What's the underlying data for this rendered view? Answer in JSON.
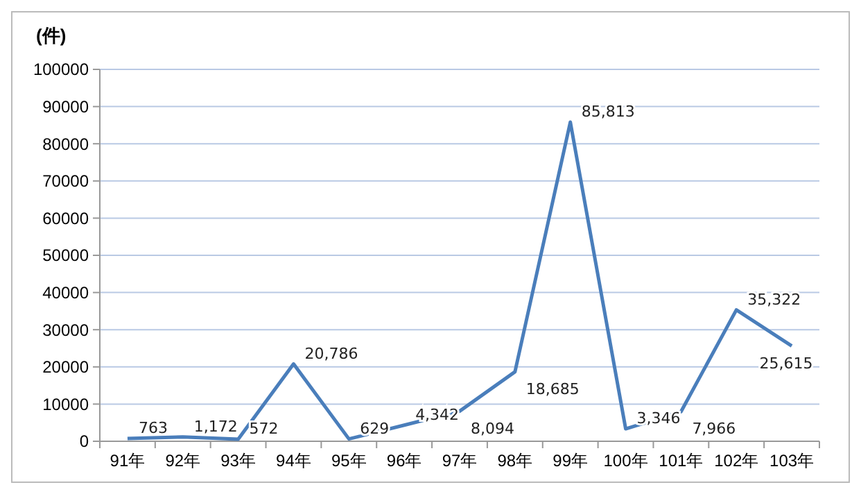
{
  "chart_data": {
    "type": "line",
    "ylabel": "(件)",
    "categories": [
      "91年",
      "92年",
      "93年",
      "94年",
      "95年",
      "96年",
      "97年",
      "98年",
      "99年",
      "100年",
      "101年",
      "102年",
      "103年"
    ],
    "series": [
      {
        "color": "#4a7ebb",
        "values": [
          763,
          1172,
          572,
          20786,
          629,
          4342,
          8094,
          18685,
          85813,
          3346,
          7966,
          35322,
          25615
        ],
        "value_labels": [
          "763",
          "1,172",
          "572",
          "20,786",
          "629",
          "4,342",
          "8,094",
          "18,685",
          "85,813",
          "3,346",
          "7,966",
          "35,322",
          "25,615"
        ]
      }
    ],
    "ylim": [
      0,
      100000
    ],
    "yticks": [
      0,
      10000,
      20000,
      30000,
      40000,
      50000,
      60000,
      70000,
      80000,
      90000,
      100000
    ],
    "grid": "y",
    "marker": "none",
    "line_style": "solid"
  }
}
